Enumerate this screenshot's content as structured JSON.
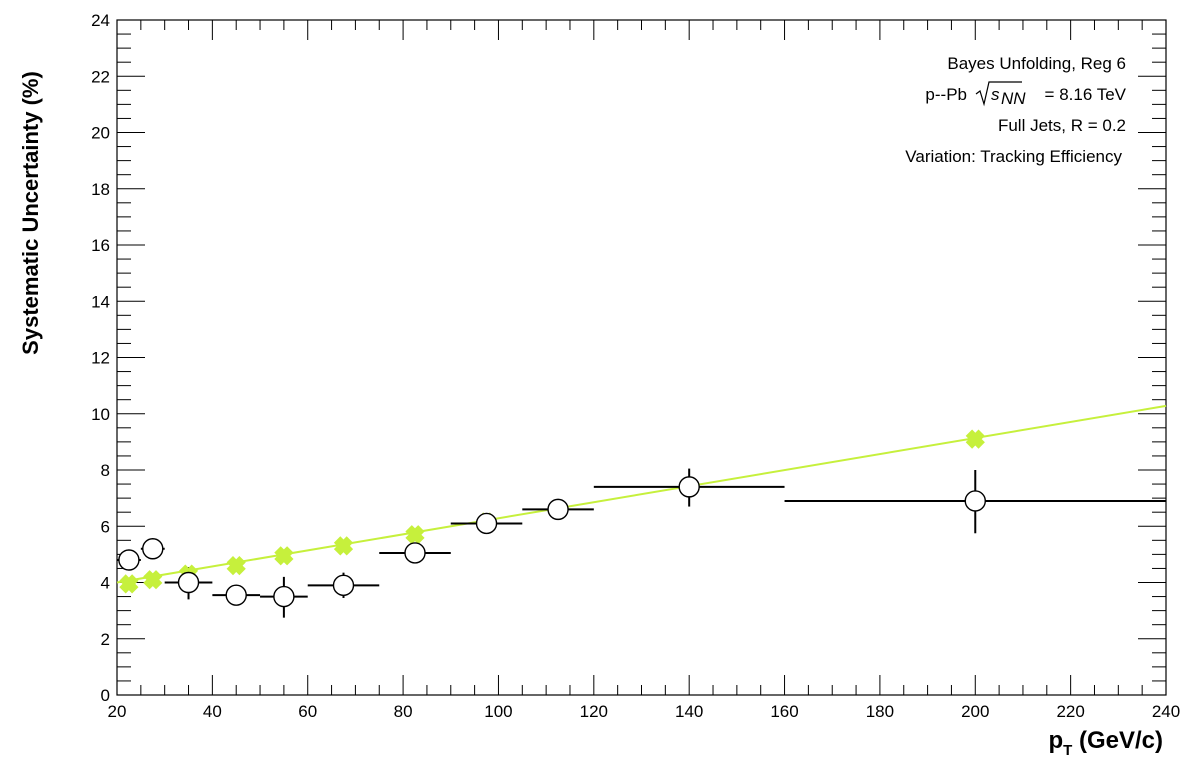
{
  "chart_data": {
    "type": "scatter",
    "xlabel": {
      "main": "p",
      "sub": "T",
      "rest": " (GeV/c)"
    },
    "ylabel": "Systematic Uncertainty (%)",
    "xlim": [
      20,
      240
    ],
    "ylim": [
      0,
      24
    ],
    "x_ticks": [
      "20",
      "40",
      "60",
      "80",
      "100",
      "120",
      "140",
      "160",
      "180",
      "200",
      "220",
      "240"
    ],
    "y_ticks": [
      "0",
      "2",
      "4",
      "6",
      "8",
      "10",
      "12",
      "14",
      "16",
      "18",
      "20",
      "22",
      "24"
    ],
    "grid": false,
    "annotations": {
      "line1": "Bayes Unfolding, Reg 6",
      "line2_prefix": "p--Pb",
      "line2_s": "s",
      "line2_sub": "NN",
      "line2_suffix": "= 8.16 TeV",
      "line3": "Full Jets, R = 0.2",
      "line4": "Variation: Tracking Efficiency"
    },
    "colors": {
      "fit": "#c6f03c",
      "markers": "#c6f03c",
      "points": "#000000"
    },
    "series": [
      {
        "marker": "open-circle",
        "points": [
          {
            "x": 22.5,
            "xlo": 20,
            "xhi": 25,
            "y": 4.8,
            "ylo": 4.65,
            "yhi": 5.0
          },
          {
            "x": 27.5,
            "xlo": 25,
            "xhi": 30,
            "y": 5.2,
            "ylo": 5.0,
            "yhi": 5.4
          },
          {
            "x": 35,
            "xlo": 30,
            "xhi": 40,
            "y": 4.0,
            "ylo": 3.4,
            "yhi": 4.55
          },
          {
            "x": 45,
            "xlo": 40,
            "xhi": 50,
            "y": 3.55,
            "ylo": 3.3,
            "yhi": 3.8
          },
          {
            "x": 55,
            "xlo": 50,
            "xhi": 60,
            "y": 3.5,
            "ylo": 2.75,
            "yhi": 4.2
          },
          {
            "x": 67.5,
            "xlo": 60,
            "xhi": 75,
            "y": 3.9,
            "ylo": 3.45,
            "yhi": 4.35
          },
          {
            "x": 82.5,
            "xlo": 75,
            "xhi": 90,
            "y": 5.05,
            "ylo": 4.85,
            "yhi": 5.25
          },
          {
            "x": 97.5,
            "xlo": 90,
            "xhi": 105,
            "y": 6.1,
            "ylo": 5.95,
            "yhi": 6.25
          },
          {
            "x": 112.5,
            "xlo": 105,
            "xhi": 120,
            "y": 6.6,
            "ylo": 6.35,
            "yhi": 6.8
          },
          {
            "x": 140,
            "xlo": 120,
            "xhi": 160,
            "y": 7.4,
            "ylo": 6.7,
            "yhi": 8.05
          },
          {
            "x": 200,
            "xlo": 160,
            "xhi": 240,
            "y": 6.9,
            "ylo": 5.75,
            "yhi": 8.0
          }
        ]
      },
      {
        "marker": "filled-cross",
        "points": [
          {
            "x": 22.5,
            "y": 3.95
          },
          {
            "x": 27.5,
            "y": 4.1
          },
          {
            "x": 35,
            "y": 4.3
          },
          {
            "x": 45,
            "y": 4.6
          },
          {
            "x": 55,
            "y": 4.95
          },
          {
            "x": 67.5,
            "y": 5.3
          },
          {
            "x": 82.5,
            "y": 5.7
          },
          {
            "x": 97.5,
            "y": 6.15
          },
          {
            "x": 112.5,
            "y": 6.6
          },
          {
            "x": 140,
            "y": 7.4
          },
          {
            "x": 200,
            "y": 9.1
          }
        ]
      }
    ],
    "fit_line": {
      "x": [
        20,
        240
      ],
      "y": [
        4.0,
        10.28
      ]
    }
  }
}
